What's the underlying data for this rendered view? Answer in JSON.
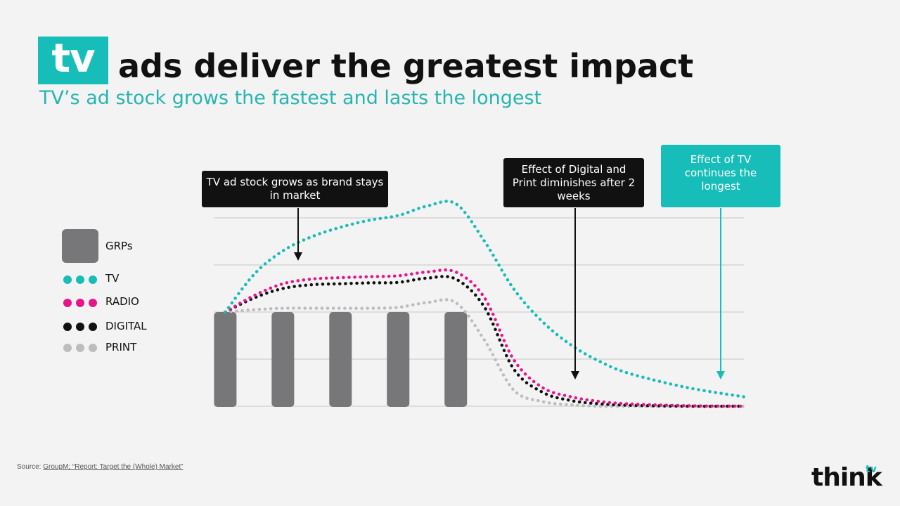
{
  "header": {
    "badge": "tv",
    "title": "ads deliver the greatest impact",
    "subtitle": "TV’s ad stock grows the fastest and lasts the longest"
  },
  "callouts": {
    "grows": "TV ad stock grows as brand stays in market",
    "diminish": "Effect of Digital and Print diminishes after 2 weeks",
    "longest": "Effect of TV continues the longest"
  },
  "legend": {
    "grps": "GRPs",
    "tv": "TV",
    "radio": "RADIO",
    "digital": "DIGITAL",
    "print": "PRINT"
  },
  "footer": {
    "source_prefix": "Source: ",
    "source_link": "GroupM; “Report: Target the (Whole) Market”",
    "logo_text": "think",
    "logo_sup": "tv"
  },
  "colors": {
    "tv": "#17bdb8",
    "radio": "#e6168a",
    "digital": "#111111",
    "print": "#bdbdbd",
    "grps": "#77777a",
    "grid": "#d0d0d0",
    "background": "#f3f3f3"
  },
  "chart_data": {
    "type": "line",
    "x": [
      0,
      0.5,
      1,
      1.5,
      2,
      2.5,
      3,
      3.5,
      4,
      4.5,
      5,
      5.5,
      6,
      6.5,
      7,
      8,
      9
    ],
    "bars": {
      "name": "GRPs",
      "positions": [
        0,
        1,
        2,
        3,
        4
      ],
      "values": [
        2,
        2,
        2,
        2,
        2
      ]
    },
    "series": [
      {
        "name": "TV",
        "values": [
          2.0,
          2.8,
          3.3,
          3.6,
          3.8,
          3.95,
          4.05,
          4.25,
          4.3,
          3.5,
          2.5,
          1.8,
          1.3,
          0.95,
          0.7,
          0.4,
          0.2
        ]
      },
      {
        "name": "RADIO",
        "values": [
          2.0,
          2.35,
          2.6,
          2.7,
          2.73,
          2.75,
          2.77,
          2.85,
          2.85,
          2.3,
          1.0,
          0.4,
          0.2,
          0.1,
          0.05,
          0.01,
          0.0
        ]
      },
      {
        "name": "DIGITAL",
        "values": [
          2.0,
          2.3,
          2.5,
          2.58,
          2.6,
          2.62,
          2.63,
          2.72,
          2.7,
          2.1,
          0.8,
          0.3,
          0.12,
          0.05,
          0.02,
          0.0,
          0.0
        ]
      },
      {
        "name": "PRINT",
        "values": [
          2.0,
          2.05,
          2.08,
          2.08,
          2.08,
          2.08,
          2.1,
          2.2,
          2.2,
          1.4,
          0.35,
          0.1,
          0.03,
          0.0,
          0.0,
          0.0,
          0.0
        ]
      }
    ],
    "xlim": [
      -0.2,
      9.0
    ],
    "ylim": [
      0,
      4
    ],
    "grid": true,
    "legend": "left"
  }
}
